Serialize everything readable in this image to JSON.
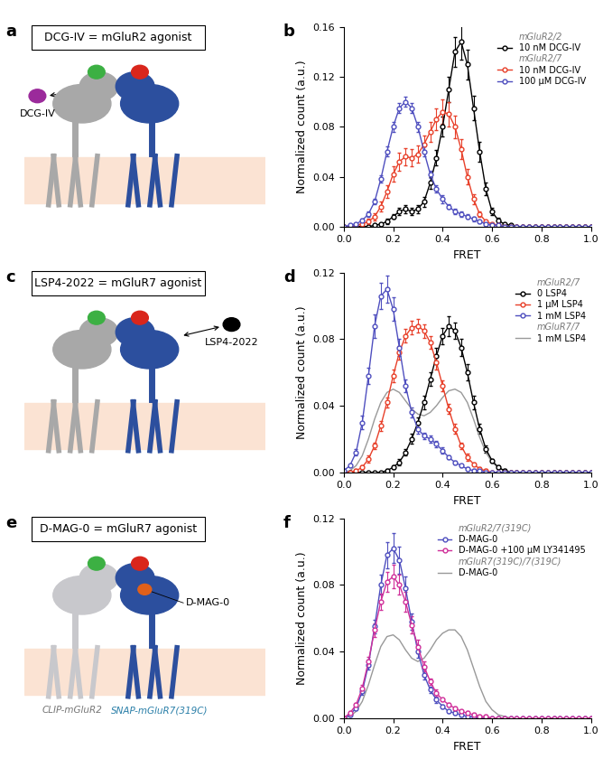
{
  "chart_data": [
    {
      "type": "line",
      "panel_label": "b",
      "x_label": "FRET",
      "y_label": "Normalized count (a.u.)",
      "xlim": [
        0.0,
        1.0
      ],
      "xticks": [
        0.0,
        0.2,
        0.4,
        0.6,
        0.8,
        1.0
      ],
      "ylim": [
        0.0,
        0.16
      ],
      "yticks": [
        {
          "value": 0.0,
          "label": "0.00"
        },
        {
          "value": 0.04,
          "label": "0.04"
        },
        {
          "value": 0.08,
          "label": "0.08"
        },
        {
          "value": 0.12,
          "label": "0.12"
        },
        {
          "value": 0.16,
          "label": "0.16"
        }
      ],
      "legend": "upper right",
      "x": [
        0.0,
        0.025,
        0.05,
        0.075,
        0.1,
        0.125,
        0.15,
        0.175,
        0.2,
        0.225,
        0.25,
        0.275,
        0.3,
        0.325,
        0.35,
        0.375,
        0.4,
        0.425,
        0.45,
        0.475,
        0.5,
        0.525,
        0.55,
        0.575,
        0.6,
        0.625,
        0.65,
        0.675,
        0.7,
        0.725,
        0.75,
        0.775,
        0.8,
        0.825,
        0.85,
        0.875,
        0.9,
        0.925,
        0.95,
        0.975,
        1.0
      ],
      "series": [
        {
          "group": "mGluR2/2",
          "name": "10 nM DCG-IV",
          "color": "#000000",
          "marker": "o",
          "line_style": "solid",
          "values": [
            0,
            0,
            0,
            0,
            0,
            0.001,
            0.002,
            0.004,
            0.008,
            0.012,
            0.014,
            0.012,
            0.014,
            0.02,
            0.035,
            0.055,
            0.08,
            0.11,
            0.14,
            0.148,
            0.13,
            0.095,
            0.06,
            0.03,
            0.012,
            0.005,
            0.002,
            0.001,
            0,
            0,
            0,
            0,
            0,
            0,
            0,
            0,
            0,
            0,
            0,
            0,
            0
          ],
          "errors": [
            0,
            0,
            0,
            0,
            0,
            0.001,
            0.001,
            0.002,
            0.002,
            0.003,
            0.003,
            0.003,
            0.003,
            0.004,
            0.005,
            0.006,
            0.008,
            0.01,
            0.012,
            0.014,
            0.012,
            0.01,
            0.008,
            0.005,
            0.003,
            0.002,
            0.001,
            0.001,
            0,
            0,
            0,
            0,
            0,
            0,
            0,
            0,
            0,
            0,
            0,
            0,
            0
          ]
        },
        {
          "group": "mGluR2/7",
          "name": "10 nM DCG-IV",
          "color": "#e8402a",
          "marker": "o",
          "line_style": "solid",
          "values": [
            0,
            0,
            0.001,
            0.002,
            0.004,
            0.008,
            0.016,
            0.028,
            0.042,
            0.052,
            0.056,
            0.055,
            0.058,
            0.066,
            0.076,
            0.086,
            0.092,
            0.09,
            0.08,
            0.062,
            0.04,
            0.022,
            0.01,
            0.004,
            0.002,
            0.001,
            0,
            0,
            0,
            0,
            0,
            0,
            0,
            0,
            0,
            0,
            0,
            0,
            0,
            0,
            0
          ],
          "errors": [
            0,
            0,
            0.001,
            0.001,
            0.002,
            0.003,
            0.004,
            0.005,
            0.006,
            0.007,
            0.007,
            0.007,
            0.007,
            0.007,
            0.008,
            0.009,
            0.01,
            0.01,
            0.009,
            0.008,
            0.006,
            0.004,
            0.002,
            0.001,
            0.001,
            0.001,
            0,
            0,
            0,
            0,
            0,
            0,
            0,
            0,
            0,
            0,
            0,
            0,
            0,
            0,
            0
          ]
        },
        {
          "group": "mGluR2/7",
          "name": "100 µM DCG-IV",
          "color": "#4f4fbf",
          "marker": "o",
          "line_style": "solid",
          "values": [
            0,
            0.001,
            0.002,
            0.005,
            0.01,
            0.02,
            0.038,
            0.06,
            0.08,
            0.095,
            0.1,
            0.095,
            0.08,
            0.06,
            0.042,
            0.03,
            0.022,
            0.016,
            0.012,
            0.01,
            0.008,
            0.006,
            0.004,
            0.002,
            0.001,
            0.001,
            0,
            0,
            0,
            0,
            0,
            0,
            0,
            0,
            0,
            0,
            0,
            0,
            0,
            0,
            0
          ],
          "errors": [
            0,
            0.001,
            0.001,
            0.001,
            0.002,
            0.002,
            0.003,
            0.004,
            0.004,
            0.004,
            0.004,
            0.004,
            0.004,
            0.004,
            0.003,
            0.003,
            0.003,
            0.002,
            0.002,
            0.002,
            0.002,
            0.002,
            0.001,
            0.001,
            0.001,
            0.001,
            0,
            0,
            0,
            0,
            0,
            0,
            0,
            0,
            0,
            0,
            0,
            0,
            0,
            0,
            0
          ]
        }
      ]
    },
    {
      "type": "line",
      "panel_label": "d",
      "x_label": "FRET",
      "y_label": "Normalized count (a.u.)",
      "xlim": [
        0.0,
        1.0
      ],
      "xticks": [
        0.0,
        0.2,
        0.4,
        0.6,
        0.8,
        1.0
      ],
      "ylim": [
        0.0,
        0.12
      ],
      "yticks": [
        {
          "value": 0.0,
          "label": "0.00"
        },
        {
          "value": 0.04,
          "label": "0.04"
        },
        {
          "value": 0.08,
          "label": "0.08"
        },
        {
          "value": 0.12,
          "label": "0.12"
        }
      ],
      "legend": "upper right",
      "x": [
        0.0,
        0.025,
        0.05,
        0.075,
        0.1,
        0.125,
        0.15,
        0.175,
        0.2,
        0.225,
        0.25,
        0.275,
        0.3,
        0.325,
        0.35,
        0.375,
        0.4,
        0.425,
        0.45,
        0.475,
        0.5,
        0.525,
        0.55,
        0.575,
        0.6,
        0.625,
        0.65,
        0.675,
        0.7,
        0.725,
        0.75,
        0.775,
        0.8,
        0.825,
        0.85,
        0.875,
        0.9,
        0.925,
        0.95,
        0.975,
        1.0
      ],
      "series": [
        {
          "group": "mGluR2/7",
          "name": "0 LSP4",
          "color": "#000000",
          "marker": "o",
          "line_style": "solid",
          "values": [
            0,
            0,
            0,
            0,
            0,
            0,
            0,
            0.001,
            0.003,
            0.006,
            0.012,
            0.02,
            0.03,
            0.042,
            0.056,
            0.07,
            0.082,
            0.088,
            0.085,
            0.075,
            0.06,
            0.042,
            0.026,
            0.014,
            0.007,
            0.003,
            0.001,
            0,
            0,
            0,
            0,
            0,
            0,
            0,
            0,
            0,
            0,
            0,
            0,
            0,
            0
          ],
          "errors": [
            0,
            0,
            0,
            0,
            0,
            0,
            0,
            0.001,
            0.001,
            0.002,
            0.002,
            0.003,
            0.003,
            0.004,
            0.004,
            0.005,
            0.005,
            0.006,
            0.005,
            0.005,
            0.005,
            0.004,
            0.003,
            0.002,
            0.001,
            0.001,
            0.001,
            0,
            0,
            0,
            0,
            0,
            0,
            0,
            0,
            0,
            0,
            0,
            0,
            0,
            0
          ]
        },
        {
          "group": "mGluR2/7",
          "name": "1 µM LSP4",
          "color": "#e8402a",
          "marker": "o",
          "line_style": "solid",
          "values": [
            0,
            0,
            0.001,
            0.003,
            0.008,
            0.016,
            0.028,
            0.042,
            0.058,
            0.072,
            0.082,
            0.087,
            0.088,
            0.085,
            0.078,
            0.066,
            0.052,
            0.038,
            0.026,
            0.016,
            0.009,
            0.005,
            0.002,
            0.001,
            0,
            0,
            0,
            0,
            0,
            0,
            0,
            0,
            0,
            0,
            0,
            0,
            0,
            0,
            0,
            0,
            0
          ],
          "errors": [
            0,
            0,
            0.001,
            0.001,
            0.002,
            0.002,
            0.003,
            0.003,
            0.004,
            0.004,
            0.004,
            0.004,
            0.004,
            0.004,
            0.004,
            0.004,
            0.003,
            0.003,
            0.003,
            0.002,
            0.002,
            0.001,
            0.001,
            0.001,
            0,
            0,
            0,
            0,
            0,
            0,
            0,
            0,
            0,
            0,
            0,
            0,
            0,
            0,
            0,
            0,
            0
          ]
        },
        {
          "group": "mGluR2/7",
          "name": "1 mM LSP4",
          "color": "#4f4fbf",
          "marker": "o",
          "line_style": "solid",
          "values": [
            0.001,
            0.004,
            0.012,
            0.03,
            0.058,
            0.088,
            0.106,
            0.11,
            0.098,
            0.075,
            0.052,
            0.036,
            0.026,
            0.022,
            0.02,
            0.017,
            0.013,
            0.009,
            0.006,
            0.004,
            0.002,
            0.001,
            0.001,
            0,
            0,
            0,
            0,
            0,
            0,
            0,
            0,
            0,
            0,
            0,
            0,
            0,
            0,
            0,
            0,
            0,
            0
          ],
          "errors": [
            0.001,
            0.001,
            0.002,
            0.004,
            0.005,
            0.007,
            0.008,
            0.008,
            0.007,
            0.005,
            0.004,
            0.003,
            0.003,
            0.002,
            0.002,
            0.002,
            0.002,
            0.001,
            0.001,
            0.001,
            0.001,
            0.001,
            0.001,
            0,
            0,
            0,
            0,
            0,
            0,
            0,
            0,
            0,
            0,
            0,
            0,
            0,
            0,
            0,
            0,
            0,
            0
          ]
        },
        {
          "group": "mGluR7/7",
          "name": "1 mM LSP4",
          "color": "#999999",
          "marker": "none",
          "line_style": "solid",
          "values": [
            0,
            0.001,
            0.004,
            0.01,
            0.02,
            0.032,
            0.042,
            0.048,
            0.05,
            0.048,
            0.043,
            0.038,
            0.035,
            0.034,
            0.036,
            0.04,
            0.045,
            0.049,
            0.05,
            0.048,
            0.042,
            0.032,
            0.021,
            0.012,
            0.006,
            0.003,
            0.001,
            0,
            0,
            0,
            0,
            0,
            0,
            0,
            0,
            0,
            0,
            0,
            0,
            0,
            0
          ]
        }
      ]
    },
    {
      "type": "line",
      "panel_label": "f",
      "x_label": "FRET",
      "y_label": "Normalized count (a.u.)",
      "xlim": [
        0.0,
        1.0
      ],
      "xticks": [
        0.0,
        0.2,
        0.4,
        0.6,
        0.8,
        1.0
      ],
      "ylim": [
        0.0,
        0.12
      ],
      "yticks": [
        {
          "value": 0.0,
          "label": "0.00"
        },
        {
          "value": 0.04,
          "label": "0.04"
        },
        {
          "value": 0.08,
          "label": "0.08"
        },
        {
          "value": 0.12,
          "label": "0.12"
        }
      ],
      "legend": "upper right",
      "x": [
        0.0,
        0.025,
        0.05,
        0.075,
        0.1,
        0.125,
        0.15,
        0.175,
        0.2,
        0.225,
        0.25,
        0.275,
        0.3,
        0.325,
        0.35,
        0.375,
        0.4,
        0.425,
        0.45,
        0.475,
        0.5,
        0.525,
        0.55,
        0.575,
        0.6,
        0.625,
        0.65,
        0.675,
        0.7,
        0.725,
        0.75,
        0.775,
        0.8,
        0.825,
        0.85,
        0.875,
        0.9,
        0.925,
        0.95,
        0.975,
        1.0
      ],
      "series": [
        {
          "group": "mGluR2/7(319C)",
          "name": "D-MAG-0",
          "color": "#4f4fbf",
          "marker": "o",
          "line_style": "solid",
          "values": [
            0,
            0.002,
            0.006,
            0.016,
            0.032,
            0.055,
            0.08,
            0.098,
            0.102,
            0.095,
            0.078,
            0.058,
            0.04,
            0.026,
            0.017,
            0.011,
            0.007,
            0.004,
            0.003,
            0.002,
            0.001,
            0.001,
            0,
            0,
            0,
            0,
            0,
            0,
            0,
            0,
            0,
            0,
            0,
            0,
            0,
            0,
            0,
            0,
            0,
            0,
            0
          ],
          "errors": [
            0,
            0.001,
            0.001,
            0.002,
            0.003,
            0.004,
            0.006,
            0.008,
            0.009,
            0.008,
            0.007,
            0.005,
            0.004,
            0.003,
            0.002,
            0.002,
            0.001,
            0.001,
            0.001,
            0.001,
            0.001,
            0.001,
            0,
            0,
            0,
            0,
            0,
            0,
            0,
            0,
            0,
            0,
            0,
            0,
            0,
            0,
            0,
            0,
            0,
            0,
            0
          ]
        },
        {
          "group": "mGluR2/7(319C)",
          "name": "D-MAG-0 +100 µM LY341495",
          "color": "#d0309a",
          "marker": "o",
          "line_style": "solid",
          "values": [
            0,
            0.003,
            0.008,
            0.018,
            0.034,
            0.053,
            0.07,
            0.082,
            0.085,
            0.08,
            0.07,
            0.056,
            0.043,
            0.031,
            0.022,
            0.015,
            0.011,
            0.008,
            0.006,
            0.004,
            0.003,
            0.002,
            0.001,
            0.001,
            0,
            0,
            0,
            0,
            0,
            0,
            0,
            0,
            0,
            0,
            0,
            0,
            0,
            0,
            0,
            0,
            0
          ],
          "errors": [
            0,
            0.001,
            0.001,
            0.002,
            0.003,
            0.004,
            0.005,
            0.006,
            0.007,
            0.006,
            0.006,
            0.005,
            0.004,
            0.003,
            0.002,
            0.002,
            0.001,
            0.001,
            0.001,
            0.001,
            0.001,
            0.001,
            0.001,
            0.001,
            0,
            0,
            0,
            0,
            0,
            0,
            0,
            0,
            0,
            0,
            0,
            0,
            0,
            0,
            0,
            0,
            0
          ]
        },
        {
          "group": "mGluR7(319C)/7(319C)",
          "name": "D-MAG-0",
          "color": "#999999",
          "marker": "none",
          "line_style": "solid",
          "values": [
            0,
            0.001,
            0.004,
            0.01,
            0.02,
            0.032,
            0.043,
            0.049,
            0.05,
            0.047,
            0.041,
            0.036,
            0.034,
            0.036,
            0.041,
            0.047,
            0.051,
            0.053,
            0.053,
            0.049,
            0.041,
            0.03,
            0.019,
            0.01,
            0.005,
            0.002,
            0.001,
            0,
            0,
            0,
            0,
            0,
            0,
            0,
            0,
            0,
            0,
            0,
            0,
            0,
            0
          ]
        }
      ]
    }
  ],
  "diagrams": [
    {
      "panel_label": "a",
      "box_text": "DCG-IV = mGluR2 agonist",
      "ligand": {
        "label": "DCG-IV",
        "color": "#9b2a9b"
      }
    },
    {
      "panel_label": "c",
      "box_text": "LSP4-2022 = mGluR7 agonist",
      "ligand": {
        "label": "LSP4-2022",
        "color": "#000000"
      }
    },
    {
      "panel_label": "e",
      "box_text": "D-MAG-0 = mGluR7 agonist",
      "ligand": {
        "label": "D-MAG-0",
        "color": "#e0601a"
      },
      "subunit_labels": [
        "CLIP-mGluR2",
        "SNAP-mGluR7(319C)"
      ]
    }
  ]
}
